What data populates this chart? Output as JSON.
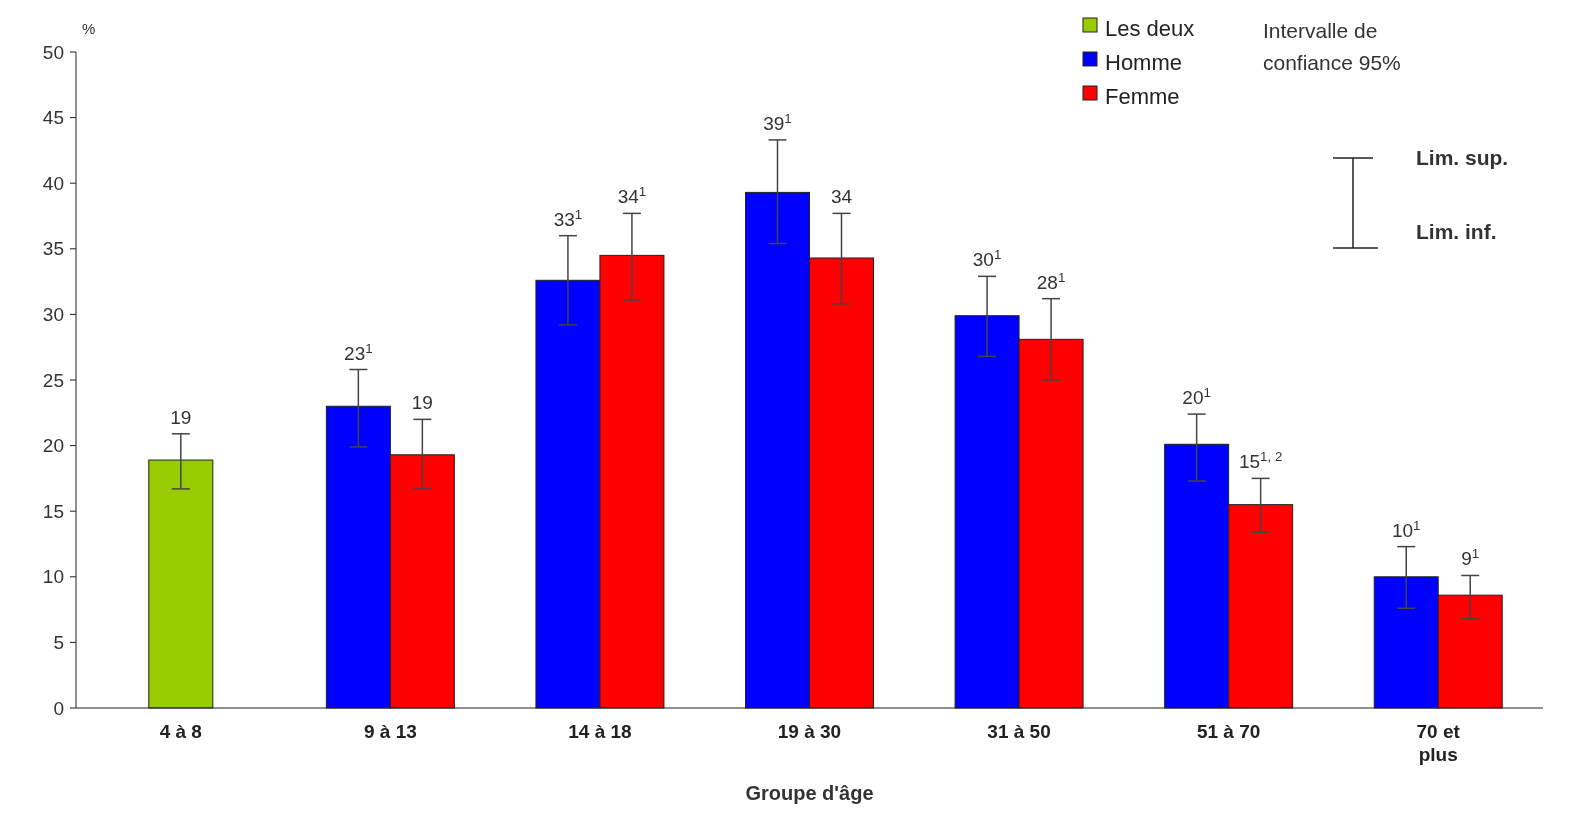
{
  "chart_data": {
    "type": "bar",
    "ylabel": "%",
    "xlabel": "Groupe d'âge",
    "categories": [
      "4 à 8",
      "9 à 13",
      "14 à 18",
      "19 à 30",
      "31 à 50",
      "51 à 70",
      "70 et\nplus"
    ],
    "series": [
      {
        "name": "Les deux",
        "color": "#99cc00",
        "values": [
          18.9,
          null,
          null,
          null,
          null,
          null,
          null
        ],
        "errors": [
          [
            16.7,
            20.9
          ],
          null,
          null,
          null,
          null,
          null,
          null
        ],
        "value_labels": [
          "19",
          null,
          null,
          null,
          null,
          null,
          null
        ]
      },
      {
        "name": "Homme",
        "color": "#0000ff",
        "values": [
          null,
          23.0,
          32.6,
          39.3,
          29.9,
          20.1,
          10
        ],
        "errors": [
          null,
          [
            19.9,
            25.8
          ],
          [
            29.2,
            36.0
          ],
          [
            35.4,
            43.3
          ],
          [
            26.8,
            32.9
          ],
          [
            17.3,
            22.4
          ],
          [
            7.6,
            12.3
          ]
        ],
        "value_labels": [
          null,
          "23$^{1}$",
          "33$^{1}$",
          "39$^{1}$",
          "30$^{1}$",
          "20$^{1}$",
          "10$^{1}$"
        ]
      },
      {
        "name": "Femme",
        "color": "#ff0000",
        "values": [
          null,
          19.3,
          34.5,
          34.3,
          28.1,
          15.5,
          8.6
        ],
        "errors": [
          null,
          [
            16.7,
            22.0
          ],
          [
            31.1,
            37.7
          ],
          [
            30.8,
            37.7
          ],
          [
            25.0,
            31.2
          ],
          [
            13.4,
            17.5
          ],
          [
            6.8,
            10.1
          ]
        ],
        "value_labels": [
          null,
          "19",
          "34$^{1}$",
          "34",
          "28$^{1}$",
          "15$^{1, 2}$",
          "9$^{1}$"
        ]
      }
    ],
    "ylim": [
      0,
      50
    ],
    "yticks": [
      0,
      5,
      10,
      15,
      20,
      25,
      30,
      35,
      40,
      45,
      50
    ],
    "grid": false,
    "legend": "top right",
    "annotations": [
      "Intervalle de\nconfiance 95%",
      "Lim. sup.",
      "Lim. inf."
    ]
  }
}
